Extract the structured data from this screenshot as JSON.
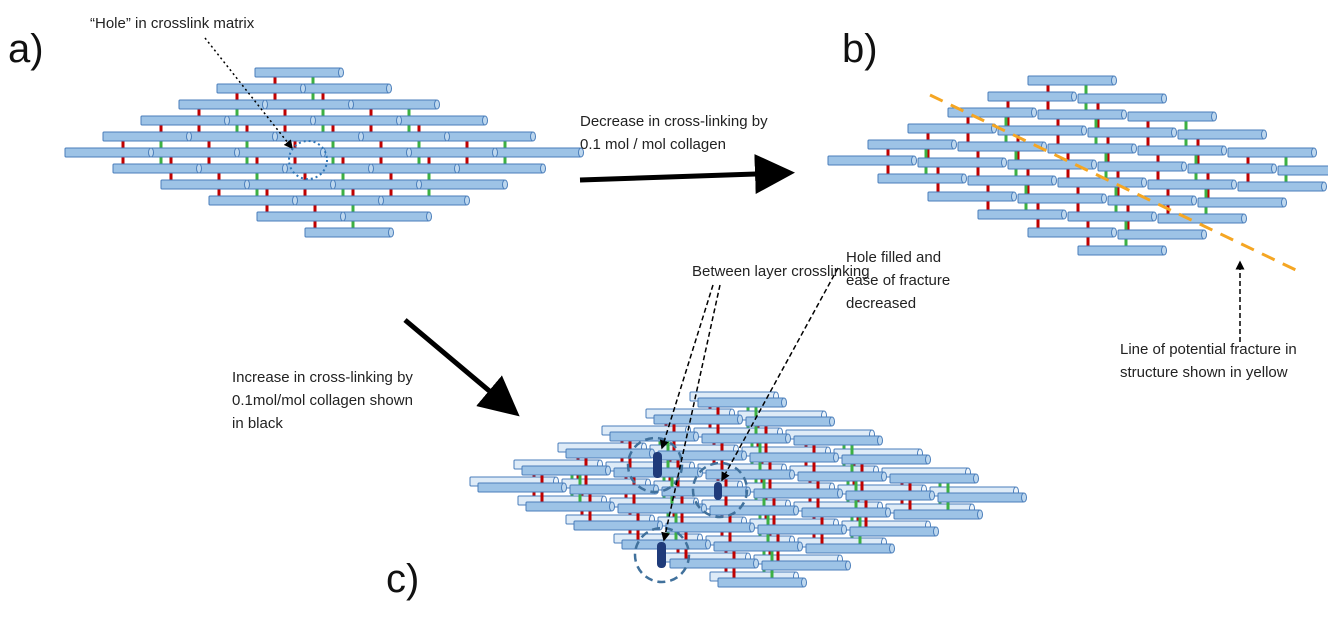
{
  "panels": {
    "a": "a)",
    "b": "b)",
    "c": "c)"
  },
  "annotations": {
    "hole": [
      "“Hole” in crosslink matrix"
    ],
    "decrease": [
      "Decrease in cross-linking by",
      "0.1 mol / mol collagen"
    ],
    "between": [
      "Between layer crosslinking"
    ],
    "filled": [
      "Hole filled and",
      "ease of fracture",
      "decreased"
    ],
    "fracture": [
      "Line of potential fracture in",
      "structure shown in yellow"
    ],
    "increase": [
      "Increase in cross-linking by",
      "0.1mol/mol collagen shown",
      "in black"
    ]
  }
}
